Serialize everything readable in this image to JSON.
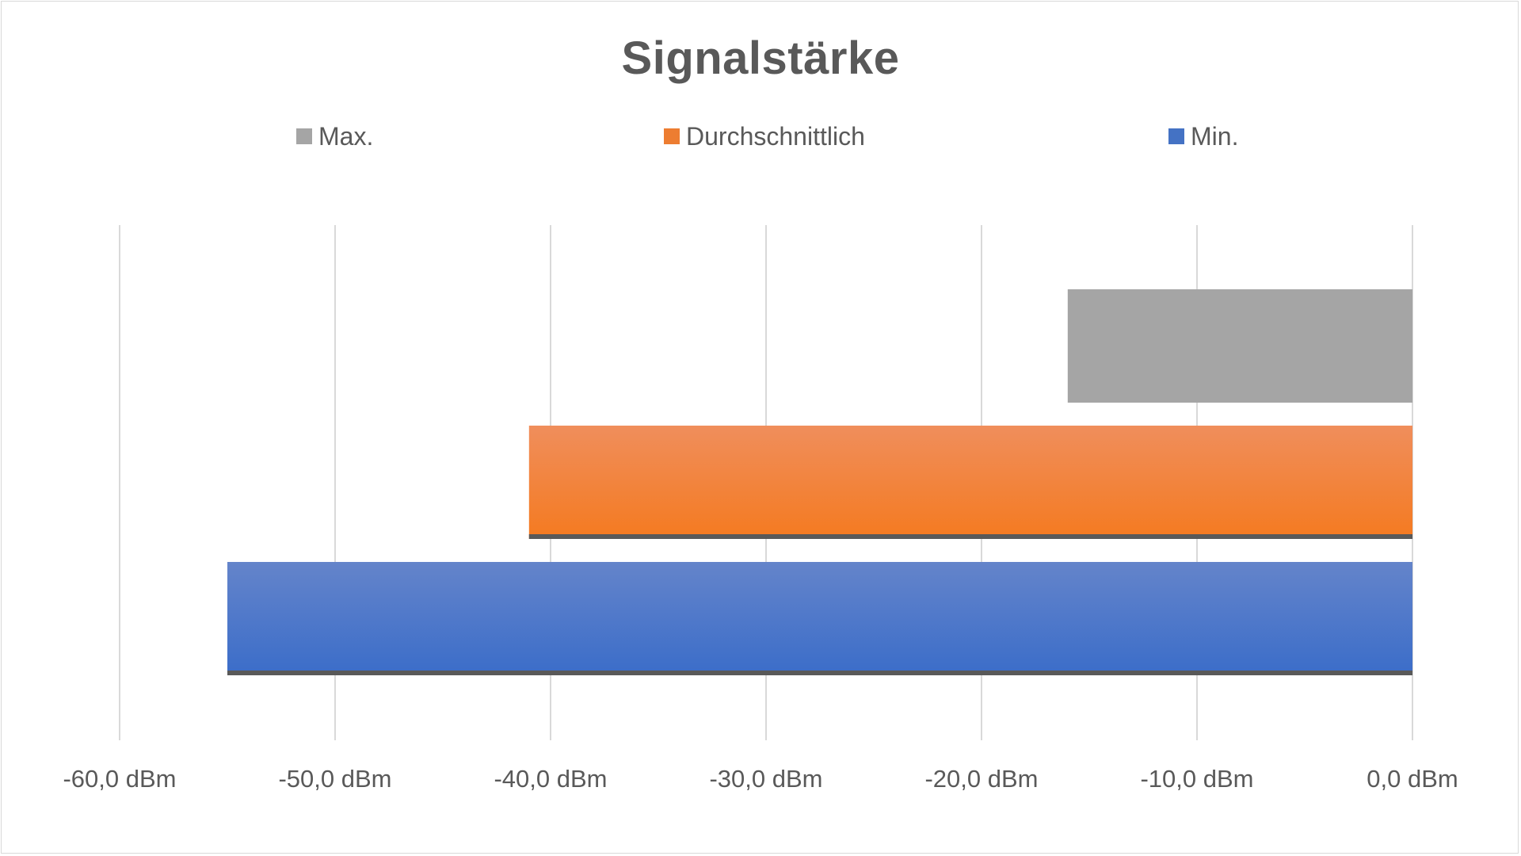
{
  "chart_data": {
    "type": "bar",
    "orientation": "horizontal",
    "title": "Signalstärke",
    "xlabel": "",
    "ylabel": "",
    "xlim": [
      -60,
      0
    ],
    "x_ticks": [
      -60,
      -50,
      -40,
      -30,
      -20,
      -10,
      0
    ],
    "x_tick_labels": [
      "-60,0 dBm",
      "-50,0 dBm",
      "-40,0 dBm",
      "-30,0 dBm",
      "-20,0 dBm",
      "-10,0 dBm",
      "0,0 dBm"
    ],
    "grid": true,
    "legend_position": "top",
    "series": [
      {
        "name": "Max.",
        "value": -16,
        "color": "#a5a5a5"
      },
      {
        "name": "Durchschnittlich",
        "value": -41,
        "color": "#ed7d31"
      },
      {
        "name": "Min.",
        "value": -55,
        "color": "#4472c4"
      }
    ]
  }
}
